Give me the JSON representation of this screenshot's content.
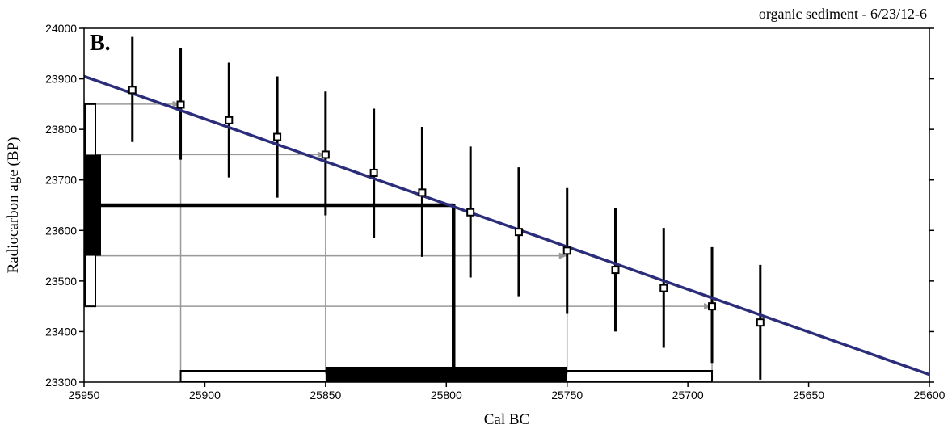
{
  "chart_data": {
    "type": "line",
    "title": "organic sediment - 6/23/12-6",
    "panel_label": "B.",
    "xlabel": "Cal BC",
    "ylabel": "Radiocarbon age (BP)",
    "xlim": [
      25950,
      25600
    ],
    "ylim": [
      23300,
      24000
    ],
    "x_ticks": [
      25950,
      25900,
      25850,
      25800,
      25750,
      25700,
      25650,
      25600
    ],
    "y_ticks": [
      23300,
      23400,
      23500,
      23600,
      23700,
      23800,
      23900,
      24000
    ],
    "grid": false,
    "colors": {
      "curve": "#2b2d7a",
      "arrows": "#999999",
      "bars": "#000000"
    },
    "calibration_curve": {
      "x": [
        25950,
        25600
      ],
      "y": [
        23905,
        23315
      ]
    },
    "series": [
      {
        "x": [
          25930,
          25910,
          25890,
          25870,
          25850,
          25830,
          25810,
          25790,
          25770,
          25750,
          25730,
          25710,
          25690,
          25670
        ],
        "y": [
          23878,
          23849,
          23818,
          23785,
          23750,
          23714,
          23675,
          23636,
          23597,
          23560,
          23522,
          23486,
          23450,
          23418
        ],
        "err_low": [
          23775,
          23740,
          23705,
          23665,
          23630,
          23585,
          23548,
          23507,
          23470,
          23435,
          23400,
          23368,
          23338,
          23305
        ],
        "err_high": [
          23983,
          23960,
          23932,
          23905,
          23875,
          23841,
          23805,
          23766,
          23725,
          23684,
          23644,
          23605,
          23567,
          23532
        ]
      }
    ],
    "sample": {
      "age_bp": 23650,
      "one_sigma": [
        23550,
        23750
      ],
      "two_sigma": [
        23450,
        23850
      ],
      "calibrated_median": 25797,
      "cal_range_one_sigma": [
        25850,
        25750
      ],
      "cal_range_two_sigma": [
        25910,
        25690
      ]
    }
  }
}
